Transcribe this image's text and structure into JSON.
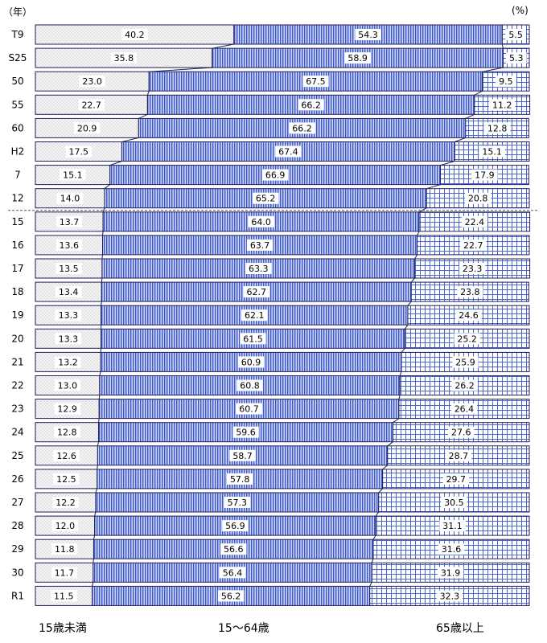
{
  "chart_data": {
    "type": "bar",
    "orientation": "horizontal-stacked-100",
    "year_unit": "（年）",
    "percent_unit": "(%)",
    "categories": [
      "T9",
      "S25",
      "50",
      "55",
      "60",
      "H2",
      "7",
      "12",
      "15",
      "16",
      "17",
      "18",
      "19",
      "20",
      "21",
      "22",
      "23",
      "24",
      "25",
      "26",
      "27",
      "28",
      "29",
      "30",
      "R1"
    ],
    "series": [
      {
        "name": "15歳未満",
        "color": "#f4f4f4",
        "pattern": "dots",
        "values": [
          40.2,
          35.8,
          23.0,
          22.7,
          20.9,
          17.5,
          15.1,
          14.0,
          13.7,
          13.6,
          13.5,
          13.4,
          13.3,
          13.3,
          13.2,
          13.0,
          12.9,
          12.8,
          12.6,
          12.5,
          12.2,
          12.0,
          11.8,
          11.7,
          11.5
        ]
      },
      {
        "name": "15～64歳",
        "color": "#7a90e0",
        "pattern": "vertical-stripes",
        "values": [
          54.3,
          58.9,
          67.5,
          66.2,
          66.2,
          67.4,
          66.9,
          65.2,
          64.0,
          63.7,
          63.3,
          62.7,
          62.1,
          61.5,
          60.9,
          60.8,
          60.7,
          59.6,
          58.7,
          57.8,
          57.3,
          56.9,
          56.6,
          56.4,
          56.2
        ]
      },
      {
        "name": "65歳以上",
        "color": "#6f86d8",
        "pattern": "grid",
        "values": [
          5.5,
          5.3,
          9.5,
          11.2,
          12.8,
          15.1,
          17.9,
          20.8,
          22.4,
          22.7,
          23.3,
          23.8,
          24.6,
          25.2,
          25.9,
          26.2,
          26.4,
          27.6,
          28.7,
          29.7,
          30.5,
          31.1,
          31.6,
          31.9,
          32.3
        ]
      }
    ],
    "xlim": [
      0,
      100
    ],
    "break_after_category": "12"
  }
}
